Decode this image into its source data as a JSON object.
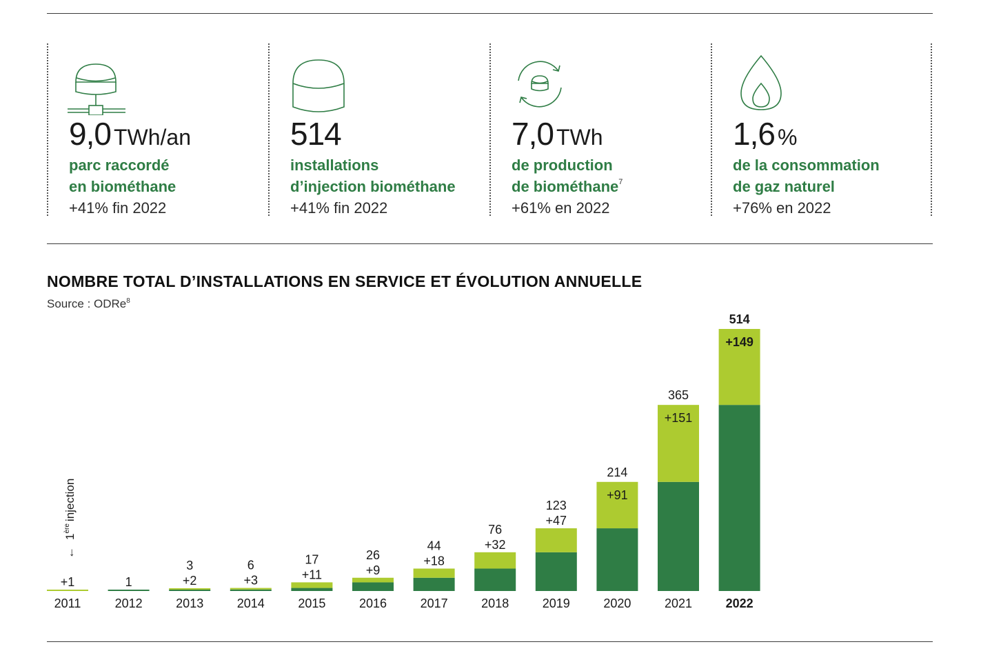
{
  "kpis": [
    {
      "icon": "biomethane-pipe-tank-icon",
      "value": "9,0",
      "unit": "TWh/an",
      "label_line1": "parc raccordé",
      "label_line2": "en biométhane",
      "footnote": "",
      "change": "+41% fin 2022"
    },
    {
      "icon": "storage-dome-icon",
      "value": "514",
      "unit": "",
      "label_line1": "installations",
      "label_line2": "d’injection biométhane",
      "footnote": "",
      "change": "+41% fin 2022"
    },
    {
      "icon": "recycle-tank-icon",
      "value": "7,0",
      "unit": "TWh",
      "label_line1": "de production",
      "label_line2": "de biométhane",
      "footnote": "7",
      "change": "+61% en 2022"
    },
    {
      "icon": "gas-flame-icon",
      "value": "1,6",
      "unit": "%",
      "label_line1": "de la consommation",
      "label_line2": "de gaz naturel",
      "footnote": "",
      "change": "+76% en 2022"
    }
  ],
  "chart_title": "NOMBRE TOTAL D’INSTALLATIONS EN SERVICE ET ÉVOLUTION ANNUELLE",
  "chart_source": "Source : ODRe",
  "chart_source_footnote": "8",
  "annotation": {
    "arrow": "←",
    "superscript": "ère",
    "number": "1",
    "text": "injection"
  },
  "chart_data": {
    "type": "bar",
    "stacked": true,
    "categories": [
      "2011",
      "2012",
      "2013",
      "2014",
      "2015",
      "2016",
      "2017",
      "2018",
      "2019",
      "2020",
      "2021",
      "2022"
    ],
    "series": [
      {
        "role": "previous",
        "values": [
          0,
          1,
          1,
          3,
          6,
          17,
          26,
          44,
          76,
          123,
          214,
          365
        ]
      },
      {
        "role": "added",
        "values": [
          1,
          0,
          2,
          3,
          11,
          9,
          18,
          32,
          47,
          91,
          151,
          149
        ]
      }
    ],
    "totals": [
      1,
      1,
      3,
      6,
      17,
      26,
      44,
      76,
      123,
      214,
      365,
      514
    ],
    "total_labels": [
      "",
      "1",
      "3",
      "6",
      "17",
      "26",
      "44",
      "76",
      "123",
      "214",
      "365",
      "514"
    ],
    "increment_labels": [
      "+1",
      "",
      "+2",
      "+3",
      "+11",
      "+9",
      "+18",
      "+32",
      "+47",
      "+91",
      "+151",
      "+149"
    ],
    "highlight_category": "2022",
    "ylim": [
      0,
      514
    ],
    "grid": false,
    "colors": {
      "previous": "#2f7d45",
      "added": "#adcb30",
      "text": "#1a1a1a"
    }
  }
}
